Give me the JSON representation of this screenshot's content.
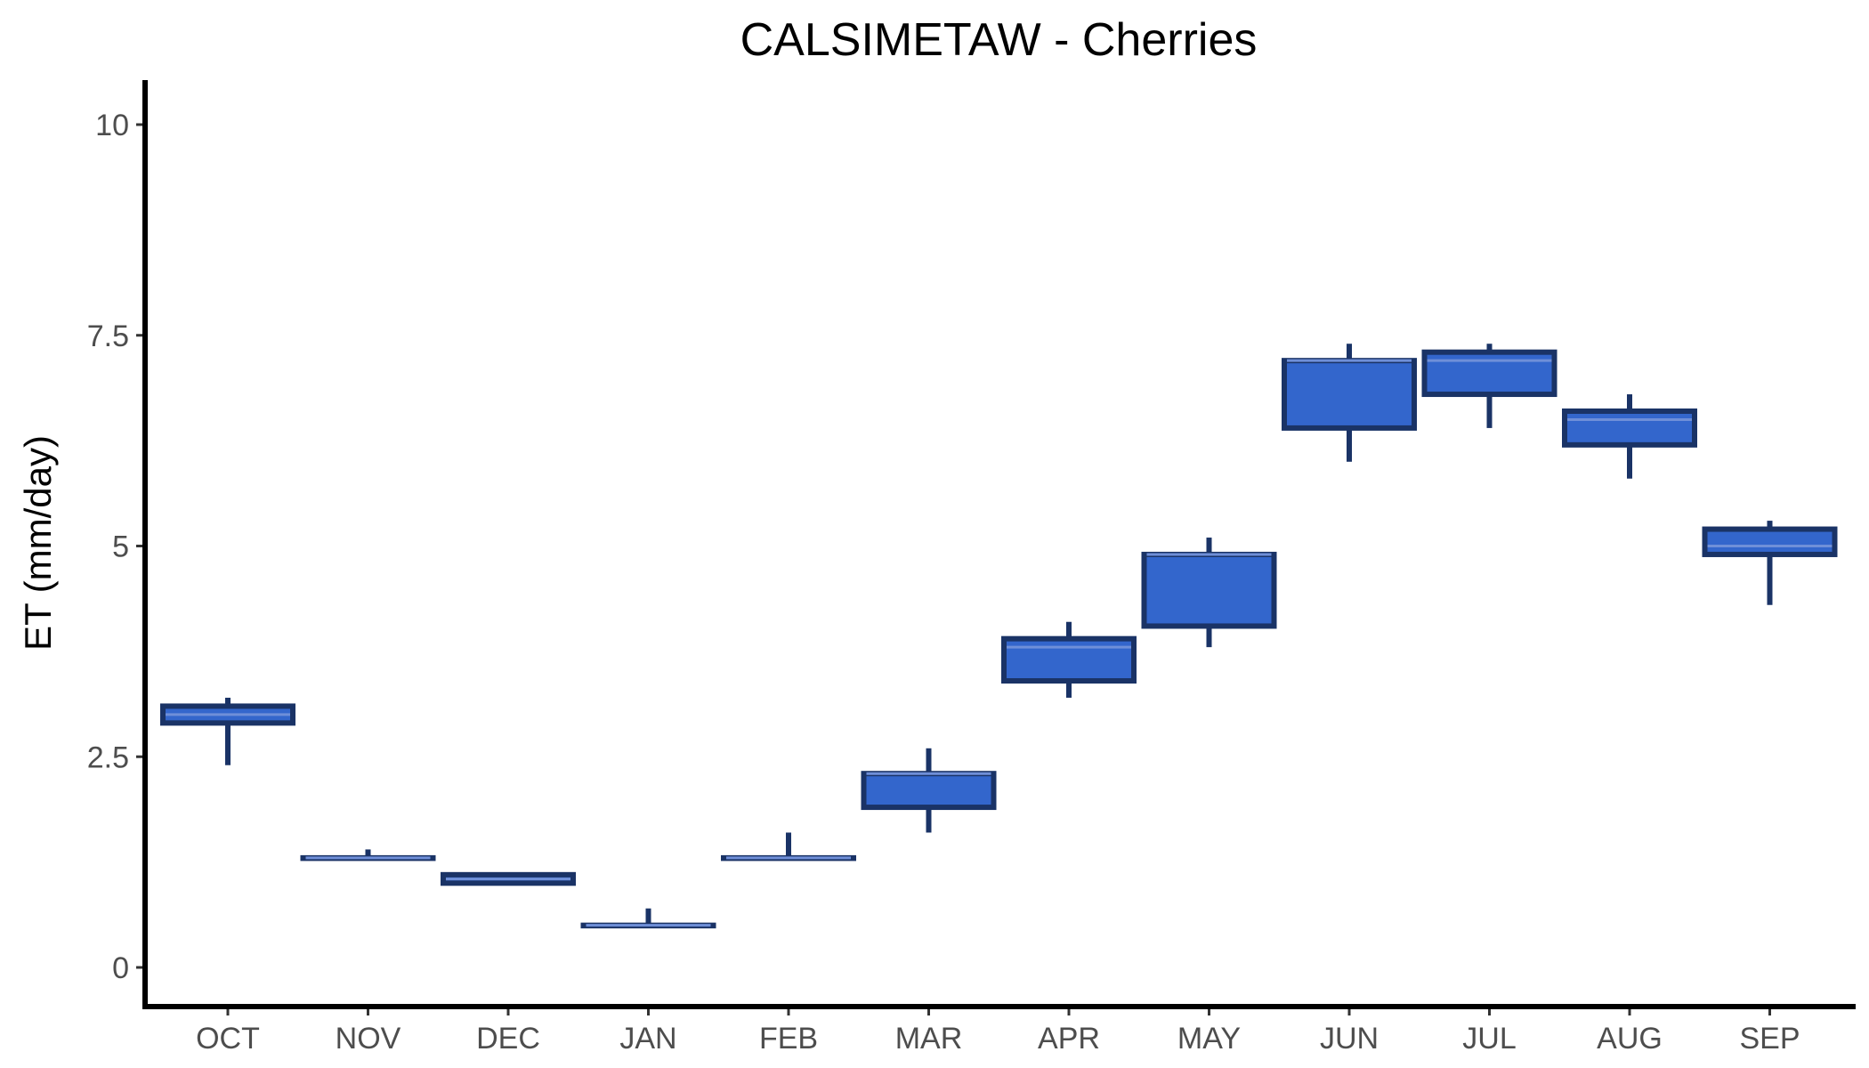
{
  "chart_data": {
    "type": "boxplot",
    "title": "CALSIMETAW - Cherries",
    "xlabel": "",
    "ylabel": "ET (mm/day)",
    "ylim": [
      -0.95,
      10.5
    ],
    "yticks": [
      0,
      2.5,
      5,
      7.5,
      10
    ],
    "ytick_labels": [
      "0",
      "2.5",
      "5",
      "7.5",
      "10"
    ],
    "categories": [
      "OCT",
      "NOV",
      "DEC",
      "JAN",
      "FEB",
      "MAR",
      "APR",
      "MAY",
      "JUN",
      "JUL",
      "AUG",
      "SEP"
    ],
    "boxes": [
      {
        "min": 2.4,
        "q1": 2.9,
        "median": 3.0,
        "q3": 3.1,
        "max": 3.2
      },
      {
        "min": 1.3,
        "q1": 1.3,
        "median": 1.3,
        "q3": 1.3,
        "max": 1.4
      },
      {
        "min": 1.0,
        "q1": 1.0,
        "median": 1.05,
        "q3": 1.1,
        "max": 1.1
      },
      {
        "min": 0.5,
        "q1": 0.5,
        "median": 0.5,
        "q3": 0.5,
        "max": 0.7
      },
      {
        "min": 1.3,
        "q1": 1.3,
        "median": 1.3,
        "q3": 1.3,
        "max": 1.6
      },
      {
        "min": 1.6,
        "q1": 1.9,
        "median": 2.3,
        "q3": 2.3,
        "max": 2.6
      },
      {
        "min": 3.2,
        "q1": 3.4,
        "median": 3.8,
        "q3": 3.9,
        "max": 4.1
      },
      {
        "min": 3.8,
        "q1": 4.05,
        "median": 4.9,
        "q3": 4.9,
        "max": 5.1
      },
      {
        "min": 6.0,
        "q1": 6.4,
        "median": 7.2,
        "q3": 7.2,
        "max": 7.4
      },
      {
        "min": 6.4,
        "q1": 6.8,
        "median": 7.2,
        "q3": 7.3,
        "max": 7.4
      },
      {
        "min": 5.8,
        "q1": 6.2,
        "median": 6.5,
        "q3": 6.6,
        "max": 6.8
      },
      {
        "min": 4.3,
        "q1": 4.9,
        "median": 5.0,
        "q3": 5.2,
        "max": 5.3
      }
    ],
    "grid": false,
    "legend": "none",
    "colors": {
      "box_fill": "#3366cc",
      "box_stroke": "#1a3366",
      "median_line": "#6f8fd8",
      "axis": "#000000",
      "tick_label": "#4d4d4d"
    }
  }
}
